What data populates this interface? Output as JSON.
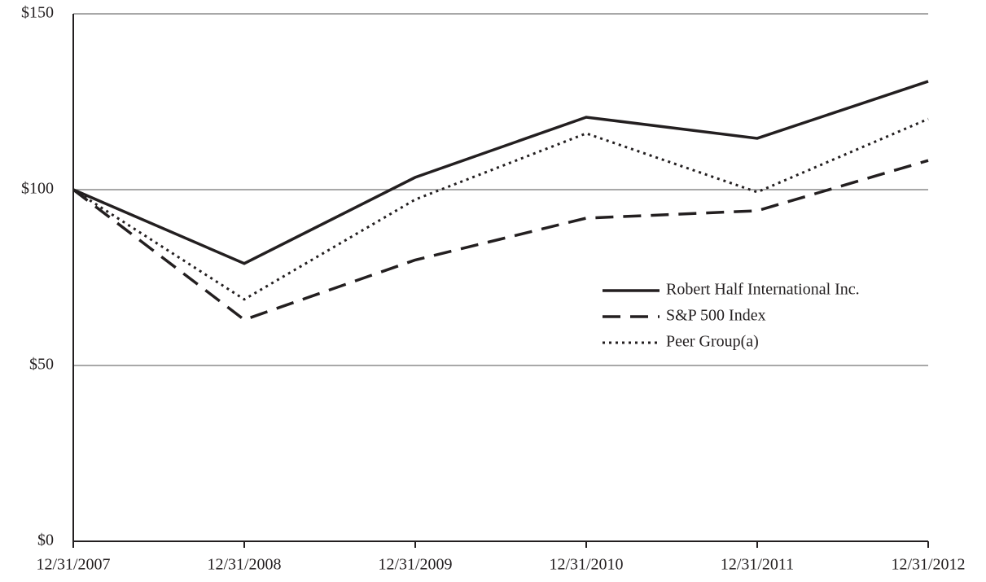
{
  "chart_data": {
    "type": "line",
    "x": [
      "12/31/2007",
      "12/31/2008",
      "12/31/2009",
      "12/31/2010",
      "12/31/2011",
      "12/31/2012"
    ],
    "series": [
      {
        "name": "Robert Half International Inc.",
        "color": "#231f20",
        "style": "solid",
        "values": [
          100,
          79,
          103.5,
          120.6,
          114.6,
          130.8
        ]
      },
      {
        "name": "S&P 500 Index",
        "color": "#231f20",
        "style": "dashed",
        "values": [
          100,
          63,
          80,
          91.9,
          94,
          108.3
        ]
      },
      {
        "name": "Peer Group(a)",
        "color": "#231f20",
        "style": "dotted",
        "values": [
          100,
          68.8,
          97.2,
          116,
          99.3,
          120.1
        ]
      }
    ],
    "ylim": [
      0,
      150
    ],
    "yticks": [
      {
        "value": 0,
        "label": "$0"
      },
      {
        "value": 50,
        "label": "$50"
      },
      {
        "value": 100,
        "label": "$100"
      },
      {
        "value": 150,
        "label": "$150"
      }
    ],
    "grid": true,
    "legend": "right"
  }
}
